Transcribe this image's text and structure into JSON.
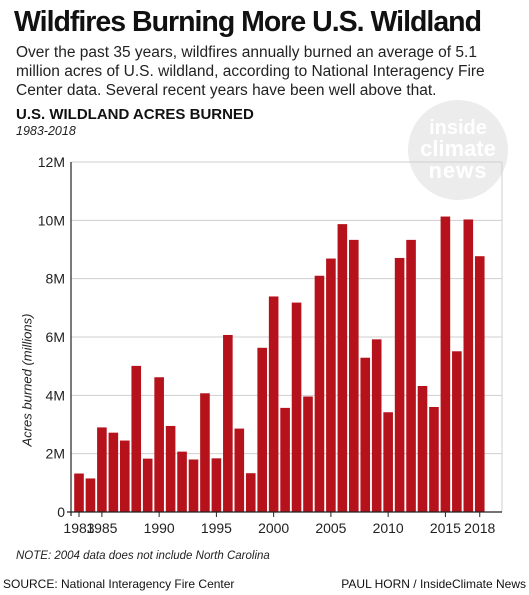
{
  "headline": "Wildfires Burning More U.S. Wildland",
  "dek": "Over the past 35 years, wildfires annually burned an average of 5.1 million acres of U.S. wildland, according to National Interagency Fire Center data. Several recent years have been well above that.",
  "logo": {
    "line1": "inside",
    "line2": "climate",
    "line3": "news"
  },
  "note": "NOTE: 2004 data does not include North Carolina",
  "source": "SOURCE: National Interagency Fire Center",
  "credit": "PAUL HORN / InsideClimate News",
  "colors": {
    "bar": "#b5121b",
    "grid": "#cfcfcf",
    "axis": "#222222"
  },
  "chart_data": {
    "type": "bar",
    "title": "U.S. WILDLAND ACRES BURNED",
    "subtitle": "1983-2018",
    "xlabel": "",
    "ylabel": "Acres burned (millions)",
    "ylim": [
      0,
      12
    ],
    "yticks": [
      0,
      2,
      4,
      6,
      8,
      10,
      12
    ],
    "ytick_labels": [
      "0",
      "2M",
      "4M",
      "6M",
      "8M",
      "10M",
      "12M"
    ],
    "xtick_labels": [
      "1983",
      "1985",
      "1990",
      "1995",
      "2000",
      "2005",
      "2010",
      "2015",
      "2018"
    ],
    "grid": true,
    "categories": [
      1983,
      1984,
      1985,
      1986,
      1987,
      1988,
      1989,
      1990,
      1991,
      1992,
      1993,
      1994,
      1995,
      1996,
      1997,
      1998,
      1999,
      2000,
      2001,
      2002,
      2003,
      2004,
      2005,
      2006,
      2007,
      2008,
      2009,
      2010,
      2011,
      2012,
      2013,
      2014,
      2015,
      2016,
      2017,
      2018
    ],
    "values": [
      1.32,
      1.15,
      2.9,
      2.72,
      2.45,
      5.01,
      1.83,
      4.62,
      2.95,
      2.07,
      1.8,
      4.07,
      1.84,
      6.07,
      2.86,
      1.33,
      5.63,
      7.39,
      3.57,
      7.18,
      3.96,
      8.1,
      8.69,
      9.87,
      9.33,
      5.29,
      5.92,
      3.42,
      8.71,
      9.33,
      4.32,
      3.6,
      10.13,
      5.51,
      10.03,
      8.77
    ]
  }
}
